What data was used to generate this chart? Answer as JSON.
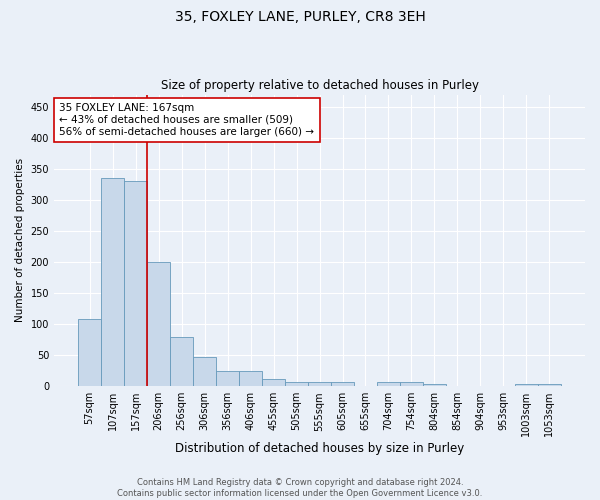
{
  "title": "35, FOXLEY LANE, PURLEY, CR8 3EH",
  "subtitle": "Size of property relative to detached houses in Purley",
  "xlabel": "Distribution of detached houses by size in Purley",
  "ylabel": "Number of detached properties",
  "bin_labels": [
    "57sqm",
    "107sqm",
    "157sqm",
    "206sqm",
    "256sqm",
    "306sqm",
    "356sqm",
    "406sqm",
    "455sqm",
    "505sqm",
    "555sqm",
    "605sqm",
    "655sqm",
    "704sqm",
    "754sqm",
    "804sqm",
    "854sqm",
    "904sqm",
    "953sqm",
    "1003sqm",
    "1053sqm"
  ],
  "bar_heights": [
    108,
    335,
    330,
    200,
    80,
    47,
    25,
    24,
    11,
    7,
    7,
    7,
    0,
    7,
    7,
    4,
    0,
    0,
    0,
    4,
    4
  ],
  "bar_color": "#c8d8ea",
  "bar_edge_color": "#6699bb",
  "property_line_color": "#cc0000",
  "annotation_text": "35 FOXLEY LANE: 167sqm\n← 43% of detached houses are smaller (509)\n56% of semi-detached houses are larger (660) →",
  "annotation_box_color": "#ffffff",
  "annotation_box_edge": "#cc0000",
  "ylim": [
    0,
    470
  ],
  "yticks": [
    0,
    50,
    100,
    150,
    200,
    250,
    300,
    350,
    400,
    450
  ],
  "footer_line1": "Contains HM Land Registry data © Crown copyright and database right 2024.",
  "footer_line2": "Contains public sector information licensed under the Open Government Licence v3.0.",
  "bg_color": "#eaf0f8",
  "plot_bg_color": "#eaf0f8",
  "grid_color": "#ffffff",
  "title_fontsize": 10,
  "subtitle_fontsize": 8.5,
  "xlabel_fontsize": 8.5,
  "ylabel_fontsize": 7.5,
  "tick_fontsize": 7,
  "footer_fontsize": 6
}
